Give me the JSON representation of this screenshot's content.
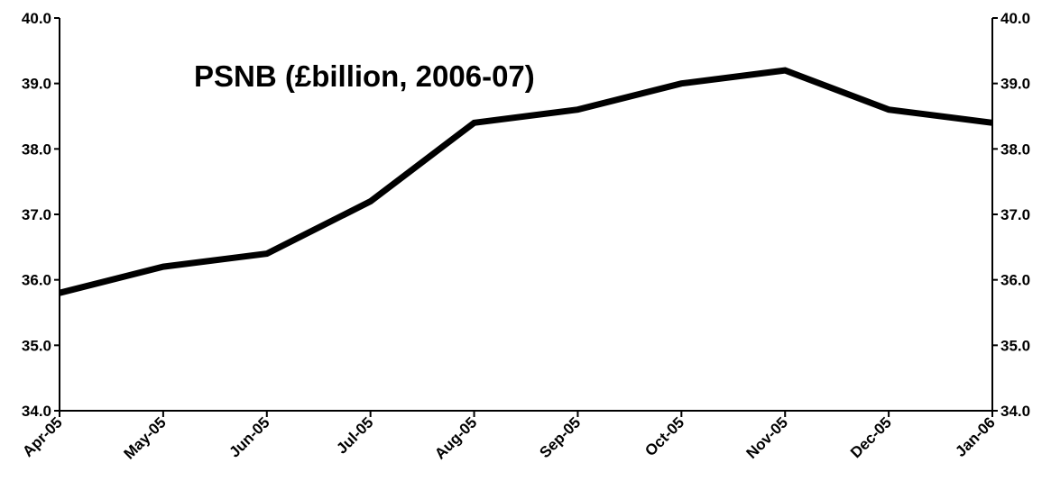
{
  "chart_data": {
    "type": "line",
    "title": "PSNB (£billion, 2006-07)",
    "xlabel": "",
    "ylabel": "",
    "categories": [
      "Apr-05",
      "May-05",
      "Jun-05",
      "Jul-05",
      "Aug-05",
      "Sep-05",
      "Oct-05",
      "Nov-05",
      "Dec-05",
      "Jan-06"
    ],
    "series": [
      {
        "values": [
          35.8,
          36.2,
          36.4,
          37.2,
          38.4,
          38.6,
          39.0,
          39.2,
          38.6,
          38.4
        ]
      }
    ],
    "ylim": [
      34.0,
      40.0
    ],
    "yticks": [
      "34.0",
      "35.0",
      "36.0",
      "37.0",
      "38.0",
      "39.0",
      "40.0"
    ],
    "secondary_yaxis": true,
    "grid": false,
    "legend": "none",
    "line_color": "#000000"
  }
}
